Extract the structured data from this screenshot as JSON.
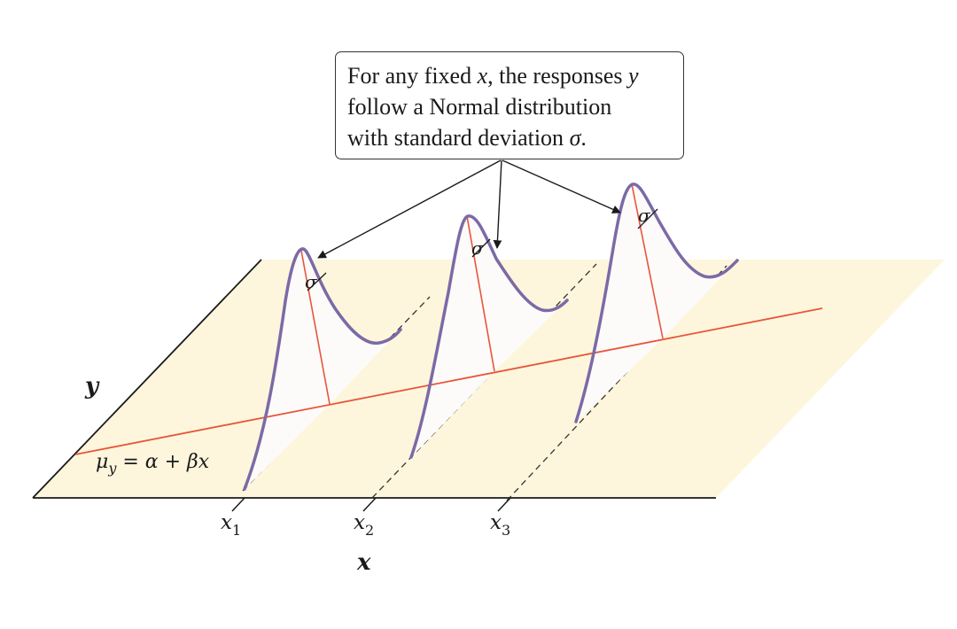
{
  "callout": {
    "line1_a": "For any fixed ",
    "line1_x": "x",
    "line1_b": ", the responses ",
    "line1_y": "y",
    "line2": "follow a Normal distribution",
    "line3_a": "with standard deviation ",
    "line3_sigma": "σ",
    "line3_b": "."
  },
  "axes": {
    "y_label": "y",
    "x_label": "x"
  },
  "regression": {
    "mu": "μ",
    "mu_sub": "y",
    "rest": " = α + βx"
  },
  "ticks": [
    {
      "base": "x",
      "sub": "1"
    },
    {
      "base": "x",
      "sub": "2"
    },
    {
      "base": "x",
      "sub": "3"
    }
  ],
  "sigma_symbol": "σ",
  "colors": {
    "plane_fill": "#fdf6dc",
    "regression_line": "#e8553a",
    "curve": "#7b6aa6",
    "curve_fill": "#fdfbfa",
    "axis": "#1a1a1a"
  }
}
